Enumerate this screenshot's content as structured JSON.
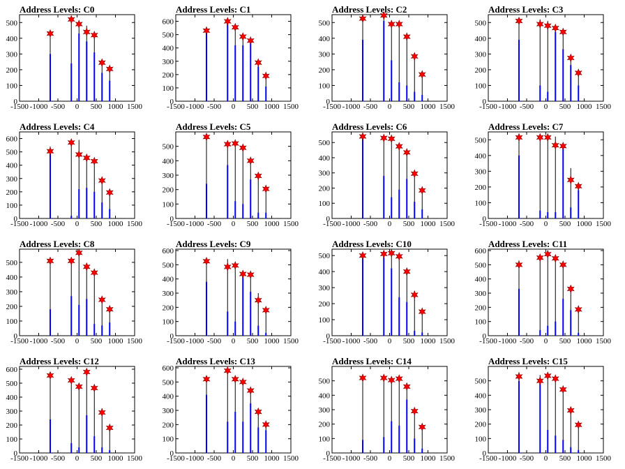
{
  "chart_data": [
    {
      "type": "bar",
      "title": "Address Levels: C0",
      "xlim": [
        -1500,
        1500
      ],
      "ylim": [
        0,
        550
      ],
      "xticks": [
        -1500,
        -1000,
        -500,
        0,
        500,
        1000,
        1500
      ],
      "yticks": [
        0,
        100,
        200,
        300,
        400,
        500
      ],
      "x": [
        -700,
        -150,
        50,
        250,
        450,
        650,
        850
      ],
      "peaks": [
        430,
        525,
        500,
        480,
        420,
        250,
        200
      ],
      "bars": [
        300,
        240,
        430,
        380,
        310,
        180,
        130
      ],
      "markers": [
        430,
        520,
        490,
        440,
        420,
        245,
        205
      ]
    },
    {
      "type": "bar",
      "title": "Address Levels: C1",
      "xlim": [
        -1500,
        1500
      ],
      "ylim": [
        0,
        650
      ],
      "xticks": [
        -1500,
        -1000,
        -500,
        0,
        500,
        1000,
        1500
      ],
      "yticks": [
        0,
        100,
        200,
        300,
        400,
        500,
        600
      ],
      "x": [
        -700,
        -150,
        50,
        250,
        450,
        650,
        850
      ],
      "peaks": [
        540,
        610,
        560,
        490,
        460,
        300,
        190
      ],
      "bars": [
        520,
        600,
        420,
        420,
        440,
        260,
        110
      ],
      "markers": [
        530,
        600,
        555,
        485,
        455,
        290,
        190
      ]
    },
    {
      "type": "bar",
      "title": "Address Levels: C2",
      "xlim": [
        -1500,
        1500
      ],
      "ylim": [
        0,
        550
      ],
      "xticks": [
        -1500,
        -1000,
        -500,
        0,
        500,
        1000,
        1500
      ],
      "yticks": [
        0,
        100,
        200,
        300,
        400,
        500
      ],
      "x": [
        -700,
        -150,
        50,
        250,
        450,
        650,
        850
      ],
      "peaks": [
        530,
        550,
        500,
        500,
        420,
        290,
        180
      ],
      "bars": [
        390,
        510,
        260,
        120,
        100,
        60,
        40
      ],
      "markers": [
        525,
        545,
        490,
        490,
        410,
        285,
        170
      ]
    },
    {
      "type": "bar",
      "title": "Address Levels: C3",
      "xlim": [
        -1500,
        1500
      ],
      "ylim": [
        0,
        550
      ],
      "xticks": [
        -1500,
        -1000,
        -500,
        0,
        500,
        1000,
        1500
      ],
      "yticks": [
        0,
        100,
        200,
        300,
        400,
        500
      ],
      "x": [
        -700,
        -150,
        50,
        250,
        450,
        650,
        850
      ],
      "peaks": [
        520,
        520,
        510,
        470,
        440,
        280,
        180
      ],
      "bars": [
        390,
        100,
        60,
        440,
        330,
        230,
        100
      ],
      "markers": [
        510,
        490,
        480,
        465,
        440,
        275,
        180
      ]
    },
    {
      "type": "bar",
      "title": "Address Levels: C4",
      "xlim": [
        -1500,
        1500
      ],
      "ylim": [
        0,
        650
      ],
      "xticks": [
        -1500,
        -1000,
        -500,
        0,
        500,
        1000,
        1500
      ],
      "yticks": [
        0,
        100,
        200,
        300,
        400,
        500,
        600
      ],
      "x": [
        -700,
        -150,
        50,
        250,
        450,
        650,
        850
      ],
      "peaks": [
        540,
        580,
        590,
        480,
        440,
        290,
        190
      ],
      "bars": [
        510,
        20,
        220,
        230,
        200,
        120,
        70
      ],
      "markers": [
        505,
        570,
        480,
        455,
        430,
        285,
        195
      ]
    },
    {
      "type": "bar",
      "title": "Address Levels: C5",
      "xlim": [
        -1500,
        1500
      ],
      "ylim": [
        0,
        600
      ],
      "xticks": [
        -1500,
        -1000,
        -500,
        0,
        500,
        1000,
        1500
      ],
      "yticks": [
        0,
        100,
        200,
        300,
        400,
        500
      ],
      "x": [
        -700,
        -150,
        50,
        250,
        450,
        650,
        850
      ],
      "peaks": [
        580,
        530,
        530,
        500,
        410,
        300,
        210
      ],
      "bars": [
        240,
        370,
        120,
        100,
        270,
        40,
        40
      ],
      "markers": [
        565,
        515,
        520,
        490,
        400,
        295,
        205
      ]
    },
    {
      "type": "bar",
      "title": "Address Levels: C6",
      "xlim": [
        -1500,
        1500
      ],
      "ylim": [
        0,
        570
      ],
      "xticks": [
        -1500,
        -1000,
        -500,
        0,
        500,
        1000,
        1500
      ],
      "yticks": [
        0,
        100,
        200,
        300,
        400,
        500
      ],
      "x": [
        -700,
        -150,
        50,
        250,
        450,
        650,
        850
      ],
      "peaks": [
        550,
        540,
        530,
        480,
        440,
        300,
        190
      ],
      "bars": [
        530,
        280,
        140,
        190,
        260,
        110,
        60
      ],
      "markers": [
        540,
        530,
        525,
        475,
        435,
        295,
        185
      ]
    },
    {
      "type": "bar",
      "title": "Address Levels: C7",
      "xlim": [
        -1500,
        1500
      ],
      "ylim": [
        0,
        550
      ],
      "xticks": [
        -1500,
        -1000,
        -500,
        0,
        500,
        1000,
        1500
      ],
      "yticks": [
        0,
        100,
        200,
        300,
        400,
        500
      ],
      "x": [
        -700,
        -150,
        50,
        250,
        450,
        650,
        850
      ],
      "peaks": [
        530,
        520,
        530,
        520,
        470,
        320,
        210
      ],
      "bars": [
        400,
        50,
        40,
        40,
        470,
        70,
        180
      ],
      "markers": [
        515,
        515,
        515,
        465,
        460,
        245,
        205
      ]
    },
    {
      "type": "bar",
      "title": "Address Levels: C8",
      "xlim": [
        -1500,
        1500
      ],
      "ylim": [
        0,
        590
      ],
      "xticks": [
        -1500,
        -1000,
        -500,
        0,
        500,
        1000,
        1500
      ],
      "yticks": [
        0,
        100,
        200,
        300,
        400,
        500
      ],
      "x": [
        -700,
        -150,
        50,
        250,
        450,
        650,
        850
      ],
      "peaks": [
        530,
        530,
        580,
        480,
        440,
        260,
        190
      ],
      "bars": [
        180,
        270,
        210,
        250,
        80,
        70,
        90
      ],
      "markers": [
        510,
        510,
        565,
        470,
        430,
        245,
        180
      ]
    },
    {
      "type": "bar",
      "title": "Address Levels: C9",
      "xlim": [
        -1500,
        1500
      ],
      "ylim": [
        0,
        610
      ],
      "xticks": [
        -1500,
        -1000,
        -500,
        0,
        500,
        1000,
        1500
      ],
      "yticks": [
        0,
        100,
        200,
        300,
        400,
        500,
        600
      ],
      "x": [
        -700,
        -150,
        50,
        250,
        450,
        650,
        850
      ],
      "peaks": [
        540,
        540,
        510,
        450,
        440,
        300,
        190
      ],
      "bars": [
        380,
        170,
        100,
        420,
        310,
        70,
        20
      ],
      "markers": [
        525,
        485,
        495,
        435,
        430,
        250,
        180
      ]
    },
    {
      "type": "bar",
      "title": "Address Levels: C10",
      "xlim": [
        -1500,
        1500
      ],
      "ylim": [
        0,
        540
      ],
      "xticks": [
        -1500,
        -1000,
        -500,
        0,
        500,
        1000,
        1500
      ],
      "yticks": [
        0,
        100,
        200,
        300,
        400,
        500
      ],
      "x": [
        -700,
        -150,
        50,
        250,
        450,
        650,
        850
      ],
      "peaks": [
        510,
        520,
        520,
        510,
        420,
        280,
        160
      ],
      "bars": [
        490,
        490,
        420,
        240,
        210,
        30,
        20
      ],
      "markers": [
        500,
        510,
        515,
        495,
        400,
        255,
        150
      ]
    },
    {
      "type": "bar",
      "title": "Address Levels: C11",
      "xlim": [
        -1500,
        1500
      ],
      "ylim": [
        0,
        610
      ],
      "xticks": [
        -1500,
        -1000,
        -500,
        0,
        500,
        1000,
        1500
      ],
      "yticks": [
        0,
        100,
        200,
        300,
        400,
        500,
        600
      ],
      "x": [
        -700,
        -150,
        50,
        250,
        450,
        650,
        850
      ],
      "peaks": [
        530,
        570,
        600,
        560,
        510,
        340,
        190
      ],
      "bars": [
        330,
        40,
        70,
        100,
        260,
        180,
        20
      ],
      "markers": [
        500,
        550,
        575,
        545,
        500,
        330,
        185
      ]
    },
    {
      "type": "bar",
      "title": "Address Levels: C12",
      "xlim": [
        -1500,
        1500
      ],
      "ylim": [
        0,
        620
      ],
      "xticks": [
        -1500,
        -1000,
        -500,
        0,
        500,
        1000,
        1500
      ],
      "yticks": [
        0,
        100,
        200,
        300,
        400,
        500,
        600
      ],
      "x": [
        -700,
        -150,
        50,
        250,
        450,
        650,
        850
      ],
      "peaks": [
        560,
        540,
        500,
        590,
        470,
        320,
        190
      ],
      "bars": [
        240,
        70,
        40,
        270,
        120,
        40,
        20
      ],
      "markers": [
        555,
        520,
        475,
        580,
        465,
        290,
        180
      ]
    },
    {
      "type": "bar",
      "title": "Address Levels: C13",
      "xlim": [
        -1500,
        1500
      ],
      "ylim": [
        0,
        610
      ],
      "xticks": [
        -1500,
        -1000,
        -500,
        0,
        500,
        1000,
        1500
      ],
      "yticks": [
        0,
        100,
        200,
        300,
        400,
        500,
        600
      ],
      "x": [
        -700,
        -150,
        50,
        250,
        450,
        650,
        850
      ],
      "peaks": [
        540,
        590,
        540,
        510,
        450,
        300,
        210
      ],
      "bars": [
        410,
        220,
        290,
        220,
        350,
        180,
        160
      ],
      "markers": [
        520,
        580,
        520,
        500,
        440,
        290,
        200
      ]
    },
    {
      "type": "bar",
      "title": "Address Levels: C14",
      "xlim": [
        -1500,
        1500
      ],
      "ylim": [
        0,
        600
      ],
      "xticks": [
        -1500,
        -1000,
        -500,
        0,
        500,
        1000,
        1500
      ],
      "yticks": [
        0,
        100,
        200,
        300,
        400,
        500
      ],
      "x": [
        -700,
        -150,
        50,
        250,
        450,
        650,
        850
      ],
      "peaks": [
        540,
        530,
        500,
        530,
        480,
        300,
        190
      ],
      "bars": [
        90,
        110,
        220,
        190,
        370,
        100,
        30
      ],
      "markers": [
        520,
        520,
        505,
        515,
        460,
        290,
        180
      ]
    },
    {
      "type": "bar",
      "title": "Address Levels: C15",
      "xlim": [
        -1500,
        1500
      ],
      "ylim": [
        0,
        600
      ],
      "xticks": [
        -1500,
        -1000,
        -500,
        0,
        500,
        1000,
        1500
      ],
      "yticks": [
        0,
        100,
        200,
        300,
        400,
        500
      ],
      "x": [
        -700,
        -150,
        50,
        250,
        450,
        650,
        850
      ],
      "peaks": [
        560,
        540,
        550,
        520,
        440,
        300,
        200
      ],
      "bars": [
        500,
        520,
        160,
        120,
        90,
        40,
        20
      ],
      "markers": [
        530,
        500,
        535,
        515,
        440,
        295,
        195
      ]
    }
  ]
}
